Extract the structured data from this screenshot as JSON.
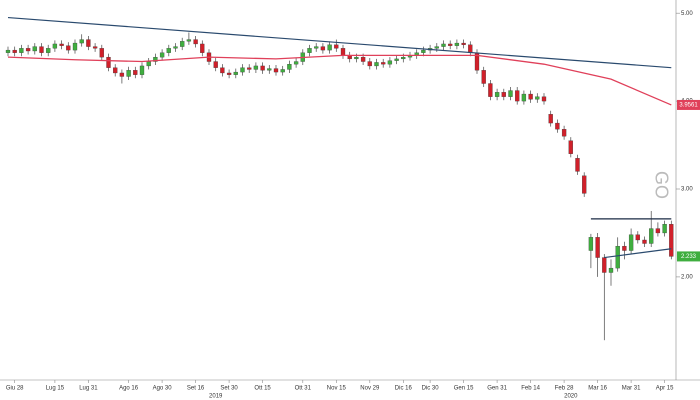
{
  "chart_data": {
    "type": "candlestick",
    "watermark": "GO",
    "ylim": [
      0.85,
      5.15
    ],
    "yticks": [
      {
        "value": 2,
        "label": "2.00"
      },
      {
        "value": 3,
        "label": "3.00"
      },
      {
        "value": 4,
        "label": "4.00"
      },
      {
        "value": 5,
        "label": "5.00"
      }
    ],
    "up_color": "#3fae3f",
    "down_color": "#d0202a",
    "categories": [
      null,
      "Giu 28",
      null,
      null,
      null,
      null,
      null,
      "Lug 15",
      null,
      null,
      null,
      null,
      "Lug 31",
      null,
      null,
      null,
      null,
      null,
      "Ago 16",
      null,
      null,
      null,
      null,
      "Ago 30",
      null,
      null,
      null,
      null,
      "Set 16",
      null,
      null,
      null,
      null,
      "Set 30",
      null,
      null,
      null,
      null,
      "Ott 15",
      null,
      null,
      null,
      null,
      null,
      "Ott 31",
      null,
      null,
      null,
      null,
      "Nov 15",
      null,
      null,
      null,
      null,
      "Nov 29",
      null,
      null,
      null,
      null,
      "Dic 16",
      null,
      null,
      null,
      "Dic 30",
      null,
      null,
      null,
      null,
      "Gen 15",
      null,
      null,
      null,
      null,
      "Gen 31",
      null,
      null,
      null,
      null,
      "Feb 14",
      null,
      null,
      null,
      null,
      "Feb 28",
      null,
      null,
      null,
      null,
      "Mar 16",
      null,
      null,
      null,
      null,
      "Mar 31",
      null,
      null,
      null,
      null,
      "Apr 15",
      null
    ],
    "years": [
      {
        "index": 31,
        "label": "2019"
      },
      {
        "index": 84,
        "label": "2020"
      }
    ],
    "open": [
      4.55,
      4.58,
      4.55,
      4.6,
      4.57,
      4.62,
      4.55,
      4.6,
      4.65,
      4.63,
      4.58,
      4.66,
      4.7,
      4.62,
      4.6,
      4.5,
      4.38,
      4.32,
      4.28,
      4.35,
      4.3,
      4.4,
      4.45,
      4.5,
      4.55,
      4.6,
      4.62,
      4.68,
      4.7,
      4.65,
      4.55,
      4.45,
      4.38,
      4.32,
      4.3,
      4.33,
      4.38,
      4.36,
      4.4,
      4.35,
      4.37,
      4.33,
      4.36,
      4.42,
      4.45,
      4.55,
      4.6,
      4.62,
      4.58,
      4.64,
      4.6,
      4.52,
      4.48,
      4.5,
      4.45,
      4.4,
      4.44,
      4.42,
      4.46,
      4.48,
      4.5,
      4.52,
      4.55,
      4.58,
      4.6,
      4.62,
      4.65,
      4.63,
      4.66,
      4.64,
      4.55,
      4.35,
      4.2,
      4.05,
      4.1,
      4.05,
      4.12,
      4.0,
      4.08,
      4.02,
      4.05,
      3.85,
      3.75,
      3.68,
      3.55,
      3.35,
      3.15,
      2.3,
      2.45,
      2.22,
      2.05,
      2.1,
      2.35,
      2.3,
      2.48,
      2.42,
      2.38,
      2.55,
      2.5,
      2.6
    ],
    "high": [
      4.62,
      4.62,
      4.64,
      4.64,
      4.66,
      4.66,
      4.64,
      4.69,
      4.69,
      4.67,
      4.7,
      4.76,
      4.74,
      4.66,
      4.64,
      4.54,
      4.42,
      4.36,
      4.39,
      4.39,
      4.44,
      4.49,
      4.54,
      4.59,
      4.64,
      4.66,
      4.72,
      4.78,
      4.74,
      4.69,
      4.59,
      4.49,
      4.42,
      4.36,
      4.37,
      4.42,
      4.42,
      4.44,
      4.44,
      4.41,
      4.41,
      4.4,
      4.46,
      4.49,
      4.59,
      4.64,
      4.66,
      4.66,
      4.68,
      4.7,
      4.64,
      4.56,
      4.54,
      4.54,
      4.49,
      4.48,
      4.48,
      4.5,
      4.52,
      4.54,
      4.56,
      4.59,
      4.62,
      4.64,
      4.66,
      4.69,
      4.69,
      4.7,
      4.7,
      4.68,
      4.59,
      4.39,
      4.24,
      4.14,
      4.14,
      4.16,
      4.16,
      4.12,
      4.12,
      4.09,
      4.09,
      3.89,
      3.79,
      3.72,
      3.59,
      3.39,
      3.19,
      2.49,
      2.5,
      2.26,
      2.2,
      2.45,
      2.4,
      2.55,
      2.52,
      2.46,
      2.75,
      2.62,
      2.64,
      2.64
    ],
    "low": [
      4.51,
      4.51,
      4.51,
      4.53,
      4.53,
      4.51,
      4.51,
      4.56,
      4.59,
      4.54,
      4.54,
      4.62,
      4.58,
      4.56,
      4.46,
      4.34,
      4.28,
      4.2,
      4.24,
      4.26,
      4.26,
      4.36,
      4.41,
      4.46,
      4.51,
      4.56,
      4.58,
      4.64,
      4.61,
      4.51,
      4.41,
      4.34,
      4.28,
      4.26,
      4.26,
      4.29,
      4.32,
      4.32,
      4.31,
      4.31,
      4.29,
      4.29,
      4.32,
      4.38,
      4.41,
      4.51,
      4.56,
      4.54,
      4.54,
      4.56,
      4.48,
      4.44,
      4.44,
      4.41,
      4.36,
      4.36,
      4.38,
      4.38,
      4.42,
      4.44,
      4.46,
      4.48,
      4.51,
      4.54,
      4.56,
      4.58,
      4.59,
      4.59,
      4.6,
      4.51,
      4.31,
      4.16,
      4.01,
      4.01,
      4.01,
      4.01,
      3.96,
      3.96,
      3.98,
      3.98,
      3.96,
      3.71,
      3.64,
      3.56,
      3.36,
      3.16,
      2.91,
      2.1,
      2.0,
      1.28,
      1.9,
      2.06,
      2.2,
      2.26,
      2.38,
      2.34,
      2.34,
      2.46,
      2.46,
      2.2
    ],
    "close": [
      4.58,
      4.55,
      4.6,
      4.57,
      4.62,
      4.55,
      4.6,
      4.65,
      4.63,
      4.58,
      4.66,
      4.7,
      4.62,
      4.6,
      4.5,
      4.38,
      4.32,
      4.28,
      4.35,
      4.3,
      4.4,
      4.45,
      4.5,
      4.55,
      4.6,
      4.62,
      4.68,
      4.7,
      4.65,
      4.55,
      4.45,
      4.38,
      4.32,
      4.3,
      4.33,
      4.38,
      4.36,
      4.4,
      4.35,
      4.37,
      4.33,
      4.36,
      4.42,
      4.45,
      4.55,
      4.6,
      4.62,
      4.58,
      4.64,
      4.6,
      4.52,
      4.48,
      4.5,
      4.45,
      4.4,
      4.44,
      4.42,
      4.46,
      4.48,
      4.5,
      4.52,
      4.55,
      4.58,
      4.6,
      4.62,
      4.65,
      4.63,
      4.66,
      4.64,
      4.55,
      4.35,
      4.2,
      4.05,
      4.1,
      4.05,
      4.12,
      4.0,
      4.08,
      4.02,
      4.05,
      4.0,
      3.75,
      3.68,
      3.6,
      3.4,
      3.2,
      2.95,
      2.45,
      2.22,
      2.05,
      2.1,
      2.35,
      2.3,
      2.48,
      2.42,
      2.38,
      2.55,
      2.5,
      2.6,
      2.233
    ],
    "close_tag_color": "#3fae3f",
    "ma": {
      "color": "#e0405a",
      "x": [
        0,
        10,
        20,
        30,
        40,
        50,
        60,
        70,
        80,
        90,
        99
      ],
      "values": [
        4.5,
        4.47,
        4.45,
        4.5,
        4.48,
        4.52,
        4.52,
        4.52,
        4.42,
        4.25,
        3.9561
      ]
    },
    "trendlines": [
      {
        "color": "#2a4a6e",
        "x": [
          0,
          99
        ],
        "values": [
          4.95,
          4.38
        ]
      },
      {
        "color": "#1a2a44",
        "x": [
          87,
          99
        ],
        "values": [
          2.66,
          2.66
        ]
      },
      {
        "color": "#2a4a6e",
        "x": [
          89,
          99
        ],
        "values": [
          2.22,
          2.32
        ]
      }
    ]
  }
}
